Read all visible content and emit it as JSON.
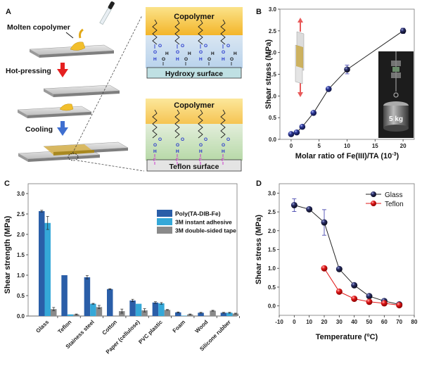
{
  "panels": {
    "A": {
      "letter": "A",
      "steps": [
        "Molten copolymer",
        "Hot-pressing",
        "Cooling"
      ],
      "hydroxy_box": {
        "top_label": "Copolymer",
        "bottom_label": "Hydroxy surface"
      },
      "teflon_box": {
        "top_label": "Copolymer",
        "bottom_label": "Teflon surface"
      },
      "chem_labels": {
        "O": "O",
        "H": "H",
        "F": "F"
      }
    },
    "B": {
      "letter": "B",
      "inset_label": "5 kg"
    },
    "C": {
      "letter": "C"
    },
    "D": {
      "letter": "D"
    }
  },
  "colors": {
    "poly": "#2a5ea8",
    "instant": "#35a8d8",
    "tape": "#8a8a8a",
    "glass_marker": "#1a1a3a",
    "teflon_marker": "#e01818",
    "errorbar": "#4a4ab0",
    "copolymer_band": "#f7c43a",
    "hydroxy_band": "#c7dcef",
    "teflon_band": "#cfe5c5"
  },
  "chart_data": [
    {
      "id": "B",
      "type": "line",
      "title": "",
      "xlabel": "Molar ratio of Fe(III)/TA (10",
      "xlabel_sup": "-3",
      "xlabel_end": ")",
      "ylabel": "Shear stress  (MPa)",
      "xlim": [
        -2,
        22
      ],
      "ylim": [
        0,
        3.0
      ],
      "xticks": [
        0,
        5,
        10,
        15,
        20
      ],
      "yticks": [
        0.0,
        0.5,
        1.0,
        1.5,
        2.0,
        2.5,
        3.0
      ],
      "ytick_labels": [
        "0.0",
        "0.5",
        "1.0",
        "1.5",
        "2.0",
        "2.5",
        "3.0"
      ],
      "series": [
        {
          "name": "Poly(TA-DIB-Fe)",
          "x": [
            0,
            1,
            2,
            4,
            6.7,
            10,
            20
          ],
          "y": [
            0.12,
            0.16,
            0.29,
            0.61,
            1.16,
            1.61,
            2.5
          ],
          "err": [
            0,
            0,
            0,
            0,
            0,
            0.1,
            0.06
          ]
        }
      ]
    },
    {
      "id": "C",
      "type": "bar",
      "title": "",
      "xlabel": "",
      "ylabel": "Shear strength (MPa)",
      "ylim": [
        0,
        3.0
      ],
      "yticks": [
        0.0,
        0.5,
        1.0,
        1.5,
        2.0,
        2.5,
        3.0
      ],
      "ytick_labels": [
        "0.0",
        "0.5",
        "1.0",
        "1.5",
        "2.0",
        "2.5",
        "3.0"
      ],
      "categories": [
        "Glass",
        "Teflon",
        "Stainess steel",
        "Cotton",
        "Paper (cellulose)",
        "PVC plastic",
        "Foam",
        "Wood",
        "Silicone rubber"
      ],
      "legend_position": "top-right",
      "series": [
        {
          "name": "Poly(TA-DIB-Fe)",
          "values": [
            2.57,
            1.0,
            0.95,
            0.66,
            0.38,
            0.33,
            0.09,
            0.08,
            0.08
          ],
          "err": [
            0.02,
            0,
            0.04,
            0.01,
            0.03,
            0.02,
            0.01,
            0.01,
            0.01
          ]
        },
        {
          "name": "3M instant adhesive",
          "values": [
            2.28,
            0.04,
            0.3,
            0.0,
            0.3,
            0.31,
            0.01,
            0.0,
            0.08
          ],
          "err": [
            0.16,
            0,
            0.01,
            0,
            0,
            0.02,
            0,
            0,
            0.01
          ]
        },
        {
          "name": "3M double-sided tape",
          "values": [
            0.17,
            0.04,
            0.22,
            0.12,
            0.14,
            0.15,
            0.04,
            0.13,
            0.06
          ],
          "err": [
            0.04,
            0.01,
            0.04,
            0.05,
            0.04,
            0.01,
            0.01,
            0.01,
            0.01
          ]
        }
      ]
    },
    {
      "id": "D",
      "type": "line",
      "title": "",
      "xlabel": "Temperature (",
      "xlabel_sup": "o",
      "xlabel_end": "C)",
      "ylabel": "Shear stress  (MPa)",
      "xlim": [
        -10,
        80
      ],
      "ylim": [
        -0.25,
        3.25
      ],
      "xticks": [
        -10,
        0,
        10,
        20,
        30,
        40,
        50,
        60,
        70,
        80
      ],
      "xtick_labels": [
        "-10",
        "0",
        "10",
        "20",
        "30",
        "40",
        "50",
        "60",
        "70",
        "80"
      ],
      "yticks": [
        0.0,
        0.5,
        1.0,
        1.5,
        2.0,
        2.5,
        3.0
      ],
      "ytick_labels": [
        "0.0",
        "0.5",
        "1.0",
        "1.5",
        "2.0",
        "2.5",
        "3.0"
      ],
      "legend_position": "top-right",
      "series": [
        {
          "name": "Glass",
          "x": [
            0,
            10,
            20,
            30,
            40,
            50,
            60,
            70
          ],
          "y": [
            2.68,
            2.57,
            2.22,
            0.98,
            0.55,
            0.26,
            0.13,
            0.04
          ],
          "err": [
            0.17,
            0,
            0.34,
            0,
            0,
            0,
            0,
            0
          ]
        },
        {
          "name": "Teflon",
          "x": [
            20,
            30,
            40,
            50,
            60,
            70
          ],
          "y": [
            1.0,
            0.38,
            0.19,
            0.11,
            0.07,
            0.02
          ],
          "err": [
            0,
            0,
            0,
            0,
            0,
            0
          ]
        }
      ]
    }
  ]
}
